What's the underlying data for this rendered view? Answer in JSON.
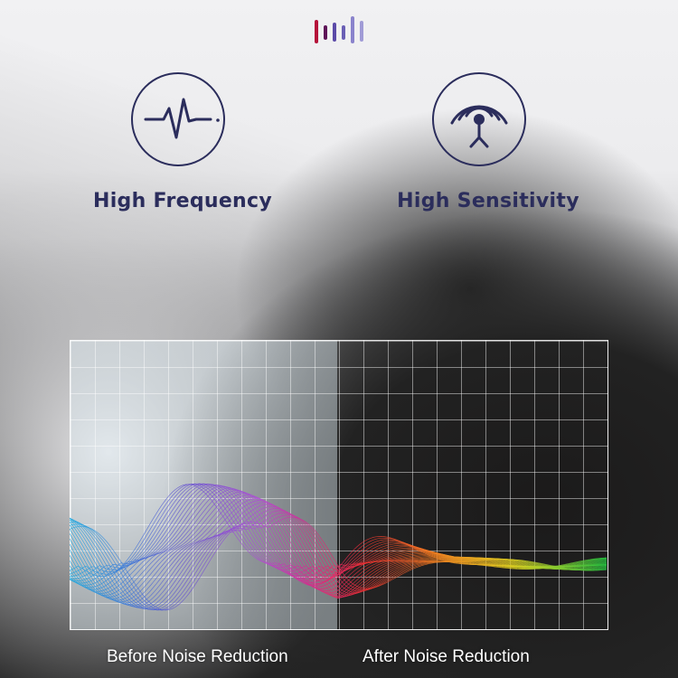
{
  "brand_logo": {
    "icon": "sound-bars-logo",
    "bar_colors": [
      "#b5123a",
      "#5e1458",
      "#5b4aa8",
      "#6a5fb5",
      "#8a83cc",
      "#a09bd6"
    ]
  },
  "features": [
    {
      "label": "High Frequency",
      "icon": "heartbeat-pulse-icon"
    },
    {
      "label": "High Sensitivity",
      "icon": "antenna-signal-icon"
    }
  ],
  "comparison": {
    "before_label": "Before Noise Reduction",
    "after_label": "After Noise Reduction"
  },
  "colors": {
    "primary": "#2b2d5c"
  }
}
